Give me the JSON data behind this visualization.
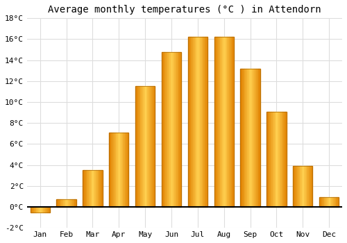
{
  "title": "Average monthly temperatures (°C ) in Attendorn",
  "months": [
    "Jan",
    "Feb",
    "Mar",
    "Apr",
    "May",
    "Jun",
    "Jul",
    "Aug",
    "Sep",
    "Oct",
    "Nov",
    "Dec"
  ],
  "temperatures": [
    -0.5,
    0.7,
    3.5,
    7.1,
    11.5,
    14.8,
    16.2,
    16.2,
    13.2,
    9.1,
    3.9,
    0.9
  ],
  "bar_color_center": "#FFD050",
  "bar_color_edge": "#E08000",
  "ylim": [
    -2,
    18
  ],
  "yticks": [
    -2,
    0,
    2,
    4,
    6,
    8,
    10,
    12,
    14,
    16,
    18
  ],
  "grid_color": "#dddddd",
  "background_color": "#ffffff",
  "title_fontsize": 10,
  "tick_fontsize": 8,
  "font_family": "monospace",
  "bar_width": 0.75
}
